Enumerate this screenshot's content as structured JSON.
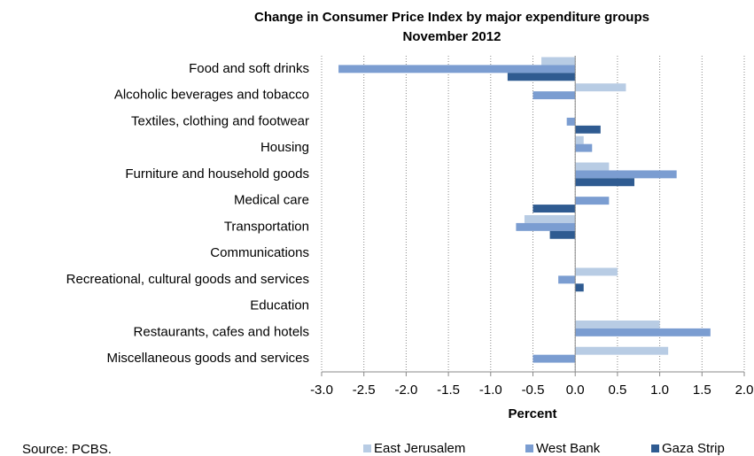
{
  "chart_data": {
    "type": "hbar",
    "title": "Change in Consumer Price Index by major expenditure groups",
    "subtitle": "November 2012",
    "x_label": "Percent",
    "source": "Source: PCBS.",
    "categories": [
      "Food and soft drinks",
      "Alcoholic beverages and tobacco",
      "Textiles, clothing and footwear",
      "Housing",
      "Furniture and household goods",
      "Medical care",
      "Transportation",
      "Communications",
      "Recreational, cultural goods and services",
      "Education",
      "Restaurants, cafes and hotels",
      "Miscellaneous goods and services"
    ],
    "series": [
      {
        "name": "East Jerusalem",
        "color": "#b8cce4",
        "values": [
          -0.4,
          0.6,
          0,
          0.1,
          0.4,
          0,
          -0.6,
          0,
          0.5,
          0,
          1.0,
          1.1
        ]
      },
      {
        "name": "West Bank",
        "color": "#7b9dd1",
        "values": [
          -2.8,
          -0.5,
          -0.1,
          0.2,
          1.2,
          0.4,
          -0.7,
          0,
          -0.2,
          0,
          1.6,
          -0.5
        ]
      },
      {
        "name": "Gaza Strip",
        "color": "#2f5b91",
        "values": [
          -0.8,
          0,
          0.3,
          0,
          0.7,
          -0.5,
          -0.3,
          0,
          0.1,
          0,
          0,
          0
        ]
      }
    ],
    "xlim": [
      -3.0,
      2.0
    ],
    "xticks": [
      {
        "value": -3.0,
        "label": "-3.0"
      },
      -2.5,
      {
        "value": -2.0,
        "label": "-2.0"
      },
      -1.5,
      {
        "value": -1.0,
        "label": "-1.0"
      },
      -0.5,
      {
        "value": 0,
        "label": "0.0"
      },
      0.5,
      {
        "value": 1.0,
        "label": "1.0"
      },
      1.5,
      {
        "value": 2.0,
        "label": "2.0"
      }
    ],
    "grid": true,
    "legend": "bottom"
  }
}
